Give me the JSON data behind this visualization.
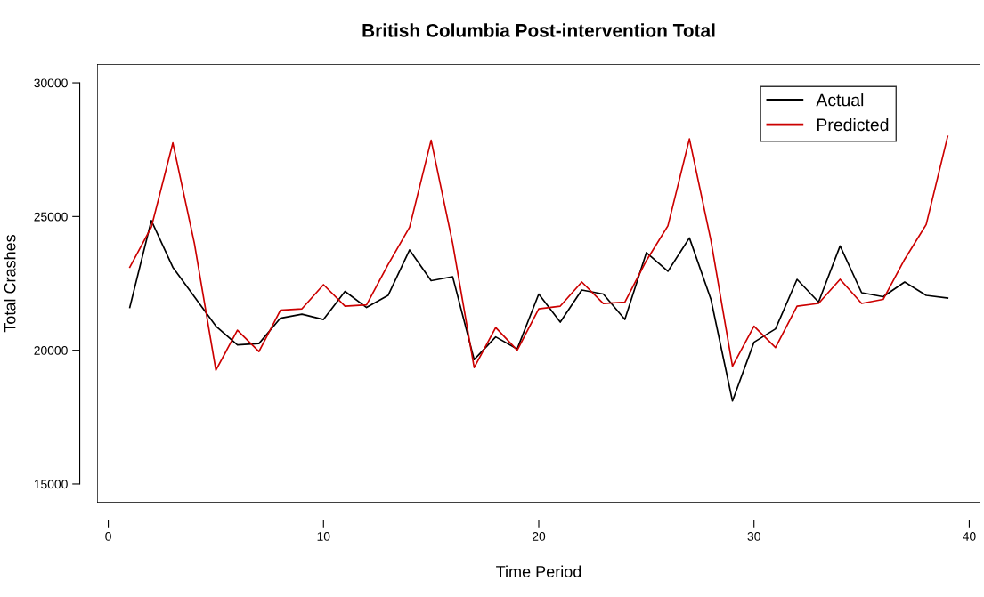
{
  "chart_data": {
    "type": "line",
    "title": "British Columbia Post-intervention Total",
    "xlabel": "Time Period",
    "ylabel": "Total Crashes",
    "x": [
      1,
      2,
      3,
      4,
      5,
      6,
      7,
      8,
      9,
      10,
      11,
      12,
      13,
      14,
      15,
      16,
      17,
      18,
      19,
      20,
      21,
      22,
      23,
      24,
      25,
      26,
      27,
      28,
      29,
      30,
      31,
      32,
      33,
      34,
      35,
      36,
      37,
      38,
      39
    ],
    "series": [
      {
        "name": "Actual",
        "color": "#000000",
        "values": [
          21600,
          24850,
          23100,
          22000,
          20900,
          20200,
          20250,
          21200,
          21350,
          21150,
          22200,
          21600,
          22050,
          23750,
          22600,
          22750,
          19650,
          20500,
          20050,
          22100,
          21050,
          22250,
          22100,
          21150,
          23650,
          22950,
          24200,
          21900,
          18100,
          20300,
          20800,
          22650,
          21800,
          23900,
          22150,
          22000,
          22550,
          22050,
          21950
        ]
      },
      {
        "name": "Predicted",
        "color": "#cc0000",
        "values": [
          23100,
          24600,
          27750,
          24000,
          19250,
          20750,
          19950,
          21500,
          21550,
          22450,
          21650,
          21700,
          23200,
          24600,
          27850,
          24000,
          19350,
          20850,
          20000,
          21550,
          21650,
          22550,
          21750,
          21800,
          23350,
          24650,
          27900,
          24100,
          19400,
          20900,
          20100,
          21650,
          21750,
          22650,
          21750,
          21900,
          23400,
          24700,
          28000
        ]
      }
    ],
    "xlim": [
      -0.52,
      40.52
    ],
    "xticks": [
      0,
      10,
      20,
      30,
      40
    ],
    "ylim": [
      14300,
      30700
    ],
    "yticks": [
      15000,
      20000,
      25000,
      30000
    ],
    "grid": false,
    "legend": "top right",
    "marker": "none",
    "line_style": "solid"
  }
}
